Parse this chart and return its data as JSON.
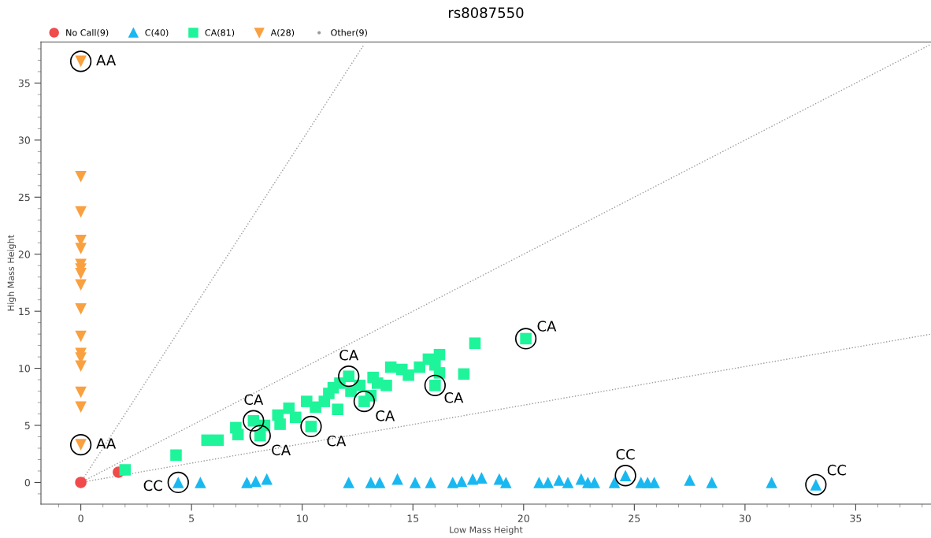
{
  "chart_data": {
    "type": "scatter",
    "title": "rs8087550",
    "xlabel": "Low Mass Height",
    "ylabel": "High Mass Height",
    "xlim": [
      -1.8,
      38.4
    ],
    "ylim": [
      -1.9,
      38.6
    ],
    "xticks": [
      {
        "value": -1,
        "label": null
      },
      0,
      {
        "value": 1,
        "label": null
      },
      {
        "value": 2,
        "label": null
      },
      {
        "value": 3,
        "label": null
      },
      {
        "value": 4,
        "label": null
      },
      5,
      {
        "value": 6,
        "label": null
      },
      {
        "value": 7,
        "label": null
      },
      {
        "value": 8,
        "label": null
      },
      {
        "value": 9,
        "label": null
      },
      10,
      {
        "value": 11,
        "label": null
      },
      {
        "value": 12,
        "label": null
      },
      {
        "value": 13,
        "label": null
      },
      {
        "value": 14,
        "label": null
      },
      15,
      {
        "value": 16,
        "label": null
      },
      {
        "value": 17,
        "label": null
      },
      {
        "value": 18,
        "label": null
      },
      {
        "value": 19,
        "label": null
      },
      20,
      {
        "value": 21,
        "label": null
      },
      {
        "value": 22,
        "label": null
      },
      {
        "value": 23,
        "label": null
      },
      {
        "value": 24,
        "label": null
      },
      25,
      {
        "value": 26,
        "label": null
      },
      {
        "value": 27,
        "label": null
      },
      {
        "value": 28,
        "label": null
      },
      {
        "value": 29,
        "label": null
      },
      30,
      {
        "value": 31,
        "label": null
      },
      {
        "value": 32,
        "label": null
      },
      {
        "value": 33,
        "label": null
      },
      {
        "value": 34,
        "label": null
      },
      35,
      {
        "value": 36,
        "label": null
      },
      {
        "value": 37,
        "label": null
      },
      {
        "value": 38,
        "label": null
      }
    ],
    "yticks": [
      {
        "value": -1,
        "label": null
      },
      0,
      {
        "value": 1,
        "label": null
      },
      {
        "value": 2,
        "label": null
      },
      {
        "value": 3,
        "label": null
      },
      {
        "value": 4,
        "label": null
      },
      5,
      {
        "value": 6,
        "label": null
      },
      {
        "value": 7,
        "label": null
      },
      {
        "value": 8,
        "label": null
      },
      {
        "value": 9,
        "label": null
      },
      10,
      {
        "value": 11,
        "label": null
      },
      {
        "value": 12,
        "label": null
      },
      {
        "value": 13,
        "label": null
      },
      {
        "value": 14,
        "label": null
      },
      15,
      {
        "value": 16,
        "label": null
      },
      {
        "value": 17,
        "label": null
      },
      {
        "value": 18,
        "label": null
      },
      {
        "value": 19,
        "label": null
      },
      20,
      {
        "value": 21,
        "label": null
      },
      {
        "value": 22,
        "label": null
      },
      {
        "value": 23,
        "label": null
      },
      {
        "value": 24,
        "label": null
      },
      25,
      {
        "value": 26,
        "label": null
      },
      {
        "value": 27,
        "label": null
      },
      {
        "value": 28,
        "label": null
      },
      {
        "value": 29,
        "label": null
      },
      30,
      {
        "value": 31,
        "label": null
      },
      {
        "value": 32,
        "label": null
      },
      {
        "value": 33,
        "label": null
      },
      {
        "value": 34,
        "label": null
      },
      35,
      {
        "value": 36,
        "label": null
      },
      {
        "value": 37,
        "label": null
      },
      {
        "value": 38,
        "label": null
      }
    ],
    "grid": false,
    "legend": "top left",
    "series": [
      {
        "type": "line",
        "color": "#999999",
        "line_style": "dotted",
        "marker": "none",
        "x": [
          0,
          12.8
        ],
        "values": [
          0,
          38.4
        ]
      },
      {
        "type": "line",
        "color": "#999999",
        "line_style": "dotted",
        "marker": "none",
        "x": [
          0,
          38.4
        ],
        "values": [
          0,
          38.4
        ]
      },
      {
        "type": "line",
        "color": "#999999",
        "line_style": "dotted",
        "marker": "none",
        "x": [
          0,
          38.4
        ],
        "values": [
          0,
          13.0
        ]
      },
      {
        "name": "No Call(9)",
        "color": "#f04a4a",
        "marker": "circle",
        "x": [
          0,
          1.7
        ],
        "values": [
          0,
          0.9
        ]
      },
      {
        "name": "C(40)",
        "color": "#1ab8f0",
        "marker": "triangle",
        "x": [
          4.4,
          5.4,
          7.5,
          7.9,
          8.4,
          12.1,
          13.1,
          13.5,
          14.3,
          15.1,
          15.8,
          16.8,
          17.2,
          17.7,
          18.1,
          18.9,
          19.2,
          20.7,
          21.1,
          21.6,
          22.0,
          22.6,
          22.9,
          23.2,
          24.1,
          24.6,
          25.3,
          25.6,
          25.9,
          27.5,
          28.5,
          31.2,
          33.2
        ],
        "values": [
          0,
          0,
          0,
          0.1,
          0.3,
          0,
          0,
          0,
          0.3,
          0,
          0,
          0,
          0.1,
          0.3,
          0.4,
          0.3,
          0,
          0,
          0,
          0.2,
          0,
          0.3,
          0,
          0,
          0,
          0.6,
          0,
          0,
          0,
          0.2,
          0,
          0,
          -0.2
        ]
      },
      {
        "name": "CA(81)",
        "color": "#1ef59a",
        "marker": "square",
        "x": [
          2.0,
          4.3,
          5.7,
          6.2,
          7.0,
          7.1,
          7.8,
          8.1,
          8.3,
          8.9,
          9.0,
          9.4,
          9.7,
          10.2,
          10.4,
          10.6,
          11.0,
          11.2,
          11.4,
          11.6,
          11.7,
          12.1,
          12.2,
          12.6,
          12.8,
          13.1,
          13.2,
          13.4,
          13.8,
          14.0,
          14.5,
          14.8,
          15.3,
          15.7,
          16.0,
          16.2,
          16.0,
          16.2,
          17.3,
          17.8,
          20.1
        ],
        "values": [
          1.1,
          2.4,
          3.7,
          3.7,
          4.8,
          4.2,
          5.4,
          4.1,
          5.0,
          5.9,
          5.1,
          6.5,
          5.7,
          7.1,
          4.9,
          6.6,
          7.1,
          7.8,
          8.3,
          6.4,
          8.7,
          9.3,
          8.0,
          8.5,
          7.1,
          7.6,
          9.2,
          8.7,
          8.5,
          10.1,
          9.9,
          9.4,
          10.1,
          10.8,
          10.3,
          11.2,
          8.5,
          9.6,
          9.5,
          12.2,
          12.6
        ]
      },
      {
        "name": "A(28)",
        "color": "#f9a040",
        "marker": "triangle-down",
        "x": [
          0,
          0,
          0,
          0,
          0,
          0,
          0,
          0,
          0,
          0,
          0,
          0,
          0,
          0,
          0,
          0,
          0
        ],
        "values": [
          36.9,
          26.8,
          23.7,
          21.2,
          20.5,
          19.1,
          18.7,
          18.3,
          17.3,
          15.2,
          12.8,
          11.3,
          10.9,
          10.2,
          7.9,
          6.6,
          3.3
        ]
      },
      {
        "name": "Other(9)",
        "color": "#999999",
        "marker": "circle"
      }
    ],
    "annotations": [
      {
        "text": "AA",
        "x": 0,
        "y": 36.9
      },
      {
        "text": "AA",
        "x": 0,
        "y": 3.3
      },
      {
        "text": "CA",
        "x": 7.8,
        "y": 5.4
      },
      {
        "text": "CA",
        "x": 8.1,
        "y": 4.1
      },
      {
        "text": "CA",
        "x": 10.4,
        "y": 4.9
      },
      {
        "text": "CA",
        "x": 12.1,
        "y": 9.3
      },
      {
        "text": "CA",
        "x": 12.8,
        "y": 7.1
      },
      {
        "text": "CA",
        "x": 16.0,
        "y": 8.5
      },
      {
        "text": "CA",
        "x": 20.1,
        "y": 12.6
      },
      {
        "text": "CC",
        "x": 4.4,
        "y": 0
      },
      {
        "text": "CC",
        "x": 24.6,
        "y": 0.6
      },
      {
        "text": "CC",
        "x": 33.2,
        "y": -0.2
      }
    ]
  }
}
